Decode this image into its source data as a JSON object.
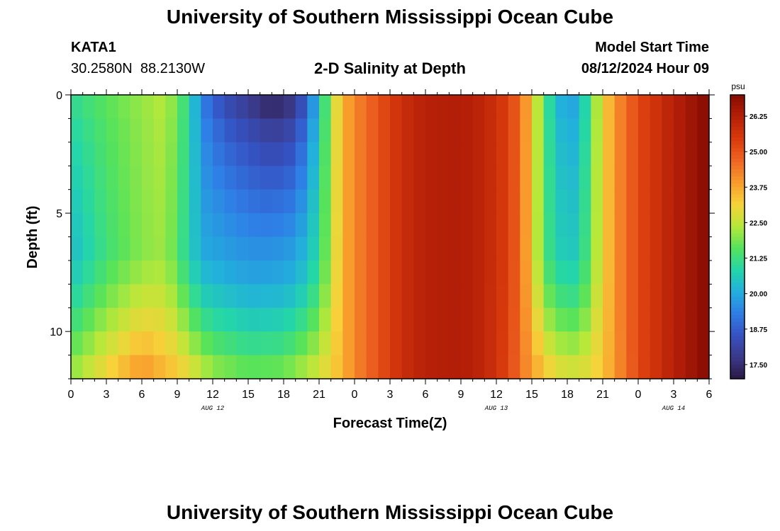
{
  "page": {
    "title_top": "University of Southern Mississippi Ocean Cube",
    "title_bottom": "University of Southern Mississippi Ocean Cube",
    "station": {
      "name": "KATA1",
      "coords": "30.2580N  88.2130W"
    },
    "plot_title": "2-D Salinity at Depth",
    "model_start": {
      "label": "Model Start Time",
      "value": "08/12/2024 Hour 09"
    }
  },
  "colors": {
    "scale": [
      "#2b1845",
      "#3b3a8a",
      "#3552c2",
      "#2f7ee6",
      "#22b0dc",
      "#24d6a8",
      "#57e35a",
      "#b8e83a",
      "#f7d23a",
      "#f89a2c",
      "#ef6422",
      "#d83a0c",
      "#b51f08",
      "#850c02"
    ]
  },
  "chart_data": {
    "type": "heatmap",
    "title": "2-D Salinity at Depth",
    "xlabel": "Forecast Time(Z)",
    "ylabel": "Depth (ft)",
    "xlim": [
      0,
      54
    ],
    "ylim": [
      0,
      12
    ],
    "x_ticks": [
      {
        "pos": 0,
        "label": "0"
      },
      {
        "pos": 3,
        "label": "3"
      },
      {
        "pos": 6,
        "label": "6"
      },
      {
        "pos": 9,
        "label": "9"
      },
      {
        "pos": 12,
        "label": "12"
      },
      {
        "pos": 15,
        "label": "15"
      },
      {
        "pos": 18,
        "label": "18"
      },
      {
        "pos": 21,
        "label": "21"
      },
      {
        "pos": 24,
        "label": "0"
      },
      {
        "pos": 27,
        "label": "3"
      },
      {
        "pos": 30,
        "label": "6"
      },
      {
        "pos": 33,
        "label": "9"
      },
      {
        "pos": 36,
        "label": "12"
      },
      {
        "pos": 39,
        "label": "15"
      },
      {
        "pos": 42,
        "label": "18"
      },
      {
        "pos": 45,
        "label": "21"
      },
      {
        "pos": 48,
        "label": "0"
      },
      {
        "pos": 51,
        "label": "3"
      },
      {
        "pos": 54,
        "label": "6"
      }
    ],
    "date_labels": [
      {
        "pos": 12,
        "label": "AUG 12"
      },
      {
        "pos": 36,
        "label": "AUG 13"
      },
      {
        "pos": 51,
        "label": "AUG 14"
      }
    ],
    "y_ticks": [
      {
        "pos": 0,
        "label": "0"
      },
      {
        "pos": 5,
        "label": "5"
      },
      {
        "pos": 10,
        "label": "10"
      }
    ],
    "depth_levels_ft": [
      0.5,
      1.5,
      2.5,
      3.5,
      4.5,
      5.5,
      6.5,
      7.5,
      8.5,
      9.5,
      10.5,
      11.5
    ],
    "time_step_hours": 1,
    "colorbar": {
      "unit": "psu",
      "range": [
        17.0,
        27.0
      ],
      "ticks": [
        "17.50",
        "18.75",
        "20.00",
        "21.25",
        "22.50",
        "23.75",
        "25.00",
        "26.25"
      ]
    },
    "surface_profile": [
      {
        "t": 0,
        "v": 21.0
      },
      {
        "t": 3,
        "v": 21.6
      },
      {
        "t": 6,
        "v": 22.1
      },
      {
        "t": 8,
        "v": 22.4
      },
      {
        "t": 10,
        "v": 21.0
      },
      {
        "t": 11,
        "v": 19.4
      },
      {
        "t": 13,
        "v": 18.4
      },
      {
        "t": 15,
        "v": 17.9
      },
      {
        "t": 17,
        "v": 17.4
      },
      {
        "t": 19,
        "v": 17.8
      },
      {
        "t": 20,
        "v": 19.0
      },
      {
        "t": 21,
        "v": 20.4
      },
      {
        "t": 22,
        "v": 22.3
      },
      {
        "t": 23,
        "v": 23.6
      },
      {
        "t": 24,
        "v": 24.2
      },
      {
        "t": 26,
        "v": 25.0
      },
      {
        "t": 28,
        "v": 25.8
      },
      {
        "t": 30,
        "v": 26.2
      },
      {
        "t": 33,
        "v": 26.3
      },
      {
        "t": 35,
        "v": 26.0
      },
      {
        "t": 37,
        "v": 25.4
      },
      {
        "t": 38,
        "v": 24.6
      },
      {
        "t": 39,
        "v": 23.3
      },
      {
        "t": 40,
        "v": 21.6
      },
      {
        "t": 41,
        "v": 20.3
      },
      {
        "t": 42,
        "v": 19.9
      },
      {
        "t": 43,
        "v": 20.0
      },
      {
        "t": 44,
        "v": 21.6
      },
      {
        "t": 45,
        "v": 23.0
      },
      {
        "t": 46,
        "v": 24.0
      },
      {
        "t": 48,
        "v": 25.2
      },
      {
        "t": 51,
        "v": 26.2
      },
      {
        "t": 54,
        "v": 27.0
      }
    ],
    "bottom_profile": [
      {
        "t": 0,
        "v": 22.0
      },
      {
        "t": 3,
        "v": 23.0
      },
      {
        "t": 6,
        "v": 23.9
      },
      {
        "t": 9,
        "v": 23.2
      },
      {
        "t": 12,
        "v": 22.0
      },
      {
        "t": 15,
        "v": 21.6
      },
      {
        "t": 18,
        "v": 21.7
      },
      {
        "t": 21,
        "v": 22.6
      },
      {
        "t": 23,
        "v": 23.6
      },
      {
        "t": 24,
        "v": 24.2
      },
      {
        "t": 26,
        "v": 25.0
      },
      {
        "t": 28,
        "v": 25.8
      },
      {
        "t": 30,
        "v": 26.2
      },
      {
        "t": 33,
        "v": 26.3
      },
      {
        "t": 35,
        "v": 26.0
      },
      {
        "t": 37,
        "v": 25.3
      },
      {
        "t": 39,
        "v": 23.8
      },
      {
        "t": 41,
        "v": 22.8
      },
      {
        "t": 43,
        "v": 22.6
      },
      {
        "t": 45,
        "v": 23.3
      },
      {
        "t": 48,
        "v": 25.2
      },
      {
        "t": 51,
        "v": 26.2
      },
      {
        "t": 54,
        "v": 27.0
      }
    ],
    "column_profile": [
      {
        "t": 0,
        "v": 20.3
      },
      {
        "t": 3,
        "v": 21.3
      },
      {
        "t": 6,
        "v": 22.0
      },
      {
        "t": 8,
        "v": 22.2
      },
      {
        "t": 10,
        "v": 20.8
      },
      {
        "t": 11,
        "v": 20.0
      },
      {
        "t": 13,
        "v": 19.8
      },
      {
        "t": 15,
        "v": 19.6
      },
      {
        "t": 17,
        "v": 19.6
      },
      {
        "t": 19,
        "v": 19.8
      },
      {
        "t": 20,
        "v": 20.3
      },
      {
        "t": 21,
        "v": 21.0
      },
      {
        "t": 22,
        "v": 22.4
      },
      {
        "t": 23,
        "v": 23.6
      },
      {
        "t": 24,
        "v": 24.2
      },
      {
        "t": 26,
        "v": 25.0
      },
      {
        "t": 28,
        "v": 25.8
      },
      {
        "t": 30,
        "v": 26.2
      },
      {
        "t": 33,
        "v": 26.3
      },
      {
        "t": 35,
        "v": 26.0
      },
      {
        "t": 37,
        "v": 25.4
      },
      {
        "t": 38,
        "v": 24.6
      },
      {
        "t": 39,
        "v": 23.2
      },
      {
        "t": 40,
        "v": 21.5
      },
      {
        "t": 41,
        "v": 20.8
      },
      {
        "t": 42,
        "v": 20.5
      },
      {
        "t": 43,
        "v": 20.6
      },
      {
        "t": 44,
        "v": 21.8
      },
      {
        "t": 45,
        "v": 23.0
      },
      {
        "t": 46,
        "v": 24.0
      },
      {
        "t": 48,
        "v": 25.2
      },
      {
        "t": 51,
        "v": 26.2
      },
      {
        "t": 54,
        "v": 27.0
      }
    ]
  }
}
